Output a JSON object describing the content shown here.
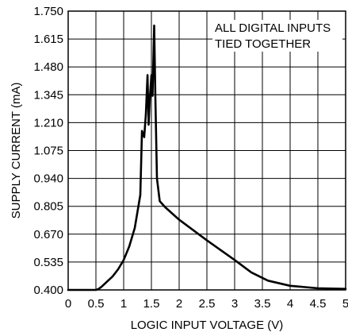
{
  "chart_data": {
    "type": "line",
    "xlabel": "LOGIC INPUT VOLTAGE (V)",
    "ylabel": "SUPPLY CURRENT (mA)",
    "annotation": [
      "ALL DIGITAL INPUTS",
      "TIED TOGETHER"
    ],
    "xlim": [
      0,
      5
    ],
    "ylim": [
      0.4,
      1.75
    ],
    "x_ticks": [
      0,
      0.5,
      1,
      1.5,
      2,
      2.5,
      3,
      3.5,
      4,
      4.5,
      5
    ],
    "x_tick_labels": [
      "0",
      "0.5",
      "1",
      "1.5",
      "2",
      "2.5",
      "3",
      "3.5",
      "4",
      "4.5",
      "5"
    ],
    "y_ticks": [
      0.4,
      0.535,
      0.67,
      0.805,
      0.94,
      1.075,
      1.21,
      1.345,
      1.48,
      1.615,
      1.75
    ],
    "y_tick_labels": [
      "0.400",
      "0.535",
      "0.670",
      "0.805",
      "0.940",
      "1.075",
      "1.210",
      "1.345",
      "1.480",
      "1.615",
      "1.750"
    ],
    "grid": true,
    "series": [
      {
        "x": [
          0,
          0.5,
          0.55,
          0.6,
          0.7,
          0.8,
          0.9,
          1.0,
          1.1,
          1.2,
          1.3,
          1.33,
          1.37,
          1.4,
          1.43,
          1.45,
          1.47,
          1.5,
          1.52,
          1.55,
          1.57,
          1.6,
          1.65,
          1.75,
          2.0,
          2.5,
          3.0,
          3.3,
          3.6,
          4.0,
          4.5,
          5.0
        ],
        "y": [
          0.4,
          0.4,
          0.405,
          0.415,
          0.44,
          0.465,
          0.5,
          0.545,
          0.61,
          0.7,
          0.86,
          1.17,
          1.14,
          1.25,
          1.44,
          1.2,
          1.32,
          1.44,
          1.34,
          1.68,
          1.35,
          0.94,
          0.83,
          0.8,
          0.74,
          0.64,
          0.545,
          0.485,
          0.445,
          0.42,
          0.408,
          0.405
        ]
      }
    ]
  }
}
